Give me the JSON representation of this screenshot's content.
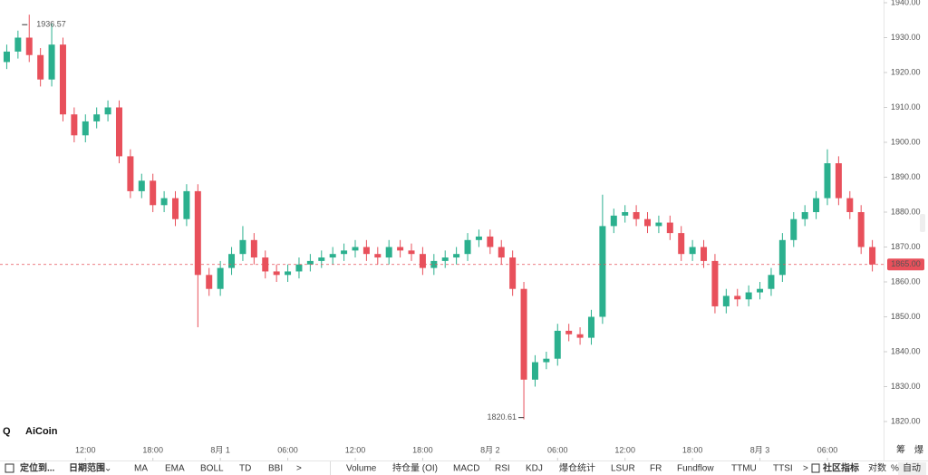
{
  "chart_data": {
    "type": "candlestick",
    "colors": {
      "up": "#2bb08e",
      "down": "#e8505b"
    },
    "x": [
      1,
      2,
      3,
      4,
      5,
      6,
      7,
      8,
      9,
      10,
      11,
      12,
      13,
      14,
      15,
      16,
      17,
      18,
      19,
      20,
      21,
      22,
      23,
      24,
      25,
      26,
      27,
      28,
      29,
      30,
      31,
      32,
      33,
      34,
      35,
      36,
      37,
      38,
      39,
      40,
      41,
      42,
      43,
      44,
      45,
      46,
      47,
      48,
      49,
      50,
      51,
      52,
      53,
      54,
      55,
      56,
      57,
      58,
      59,
      60,
      61,
      62,
      63,
      64,
      65,
      66,
      67,
      68,
      69,
      70,
      71,
      72,
      73,
      74,
      75,
      76,
      77,
      78
    ],
    "open": [
      1923,
      1926,
      1930,
      1925,
      1918,
      1928,
      1908,
      1902,
      1906,
      1908,
      1910,
      1896,
      1886,
      1889,
      1882,
      1884,
      1878,
      1886,
      1862,
      1858,
      1864,
      1868,
      1872,
      1867,
      1863,
      1862,
      1863,
      1865,
      1866,
      1867,
      1868,
      1869,
      1870,
      1868,
      1867,
      1870,
      1869,
      1868,
      1864,
      1866,
      1867,
      1868,
      1872,
      1873,
      1870,
      1867,
      1858,
      1832,
      1837,
      1838,
      1846,
      1845,
      1844,
      1850,
      1876,
      1879,
      1880,
      1878,
      1876,
      1877,
      1874,
      1868,
      1870,
      1866,
      1853,
      1856,
      1855,
      1857,
      1858,
      1862,
      1872,
      1878,
      1880,
      1884,
      1894,
      1884,
      1880,
      1870
    ],
    "high": [
      1928,
      1932,
      1936.57,
      1927,
      1934,
      1930,
      1910,
      1908,
      1910,
      1912,
      1912,
      1898,
      1891,
      1891,
      1886,
      1886,
      1888,
      1888,
      1864,
      1866,
      1870,
      1876,
      1874,
      1869,
      1865,
      1865,
      1867,
      1868,
      1869,
      1870,
      1871,
      1872,
      1872,
      1870,
      1872,
      1872,
      1871,
      1870,
      1868,
      1869,
      1870,
      1874,
      1875,
      1875,
      1872,
      1869,
      1860,
      1839,
      1840,
      1848,
      1848,
      1847,
      1852,
      1885,
      1881,
      1882,
      1882,
      1880,
      1879,
      1879,
      1876,
      1872,
      1872,
      1868,
      1858,
      1858,
      1859,
      1860,
      1864,
      1874,
      1880,
      1882,
      1886,
      1898,
      1896,
      1886,
      1882,
      1872
    ],
    "low": [
      1921,
      1924,
      1923,
      1916,
      1916,
      1906,
      1900,
      1900,
      1904,
      1906,
      1894,
      1884,
      1884,
      1880,
      1880,
      1876,
      1876,
      1847,
      1856,
      1856,
      1862,
      1866,
      1865,
      1861,
      1860,
      1860,
      1861,
      1863,
      1864,
      1865,
      1866,
      1867,
      1866,
      1865,
      1865,
      1867,
      1866,
      1862,
      1862,
      1864,
      1865,
      1866,
      1870,
      1868,
      1865,
      1856,
      1820.61,
      1830,
      1835,
      1836,
      1843,
      1842,
      1842,
      1848,
      1874,
      1877,
      1876,
      1874,
      1874,
      1872,
      1866,
      1866,
      1864,
      1851,
      1851,
      1853,
      1853,
      1855,
      1856,
      1860,
      1870,
      1876,
      1878,
      1882,
      1882,
      1878,
      1868,
      1863
    ],
    "close": [
      1926,
      1930,
      1925,
      1918,
      1928,
      1908,
      1902,
      1906,
      1908,
      1910,
      1896,
      1886,
      1889,
      1882,
      1884,
      1878,
      1886,
      1862,
      1858,
      1864,
      1868,
      1872,
      1867,
      1863,
      1862,
      1863,
      1865,
      1866,
      1867,
      1868,
      1869,
      1870,
      1868,
      1867,
      1870,
      1869,
      1868,
      1864,
      1866,
      1867,
      1868,
      1872,
      1873,
      1870,
      1867,
      1858,
      1832,
      1837,
      1838,
      1846,
      1845,
      1844,
      1850,
      1876,
      1879,
      1880,
      1878,
      1876,
      1877,
      1874,
      1868,
      1870,
      1866,
      1853,
      1856,
      1855,
      1857,
      1858,
      1862,
      1872,
      1878,
      1880,
      1884,
      1894,
      1884,
      1880,
      1870,
      1865
    ],
    "xlim": [
      0.4,
      79
    ],
    "xticks": [
      {
        "value": 8,
        "label": "12:00"
      },
      {
        "value": 14,
        "label": "18:00"
      },
      {
        "value": 20,
        "label": "8月 1"
      },
      {
        "value": 26,
        "label": "06:00"
      },
      {
        "value": 32,
        "label": "12:00"
      },
      {
        "value": 38,
        "label": "18:00"
      },
      {
        "value": 44,
        "label": "8月 2"
      },
      {
        "value": 50,
        "label": "06:00"
      },
      {
        "value": 56,
        "label": "12:00"
      },
      {
        "value": 62,
        "label": "18:00"
      },
      {
        "value": 68,
        "label": "8月 3"
      },
      {
        "value": 74,
        "label": "06:00"
      }
    ],
    "ylim": [
      1820,
      1940
    ],
    "yticks": [
      {
        "value": 1820,
        "label": "1820.00"
      },
      {
        "value": 1830,
        "label": "1830.00"
      },
      {
        "value": 1840,
        "label": "1840.00"
      },
      {
        "value": 1850,
        "label": "1850.00"
      },
      {
        "value": 1860,
        "label": "1860.00"
      },
      {
        "value": 1870,
        "label": "1870.00"
      },
      {
        "value": 1880,
        "label": "1880.00"
      },
      {
        "value": 1890,
        "label": "1890.00"
      },
      {
        "value": 1900,
        "label": "1900.00"
      },
      {
        "value": 1910,
        "label": "1910.00"
      },
      {
        "value": 1920,
        "label": "1920.00"
      },
      {
        "value": 1930,
        "label": "1930.00"
      },
      {
        "value": 1940,
        "label": "1940.00"
      }
    ],
    "grid": false,
    "last_price": {
      "value": 1865,
      "label": "1865.00"
    },
    "logo": "AiCoin"
  },
  "toolbar": {
    "items": [
      "定位到...",
      "日期范围",
      "MA",
      "EMA",
      "BOLL",
      "TD",
      "BBI",
      ">",
      "Volume",
      "持仓量 (OI)",
      "MACD",
      "RSI",
      "KDJ",
      "爆仓统计",
      "LSUR",
      "FR",
      "Fundflow",
      "TTMU",
      "TTSI",
      ">",
      "社区指标",
      "对数",
      "%",
      "自动"
    ],
    "side_buttons": [
      "筹",
      "爆"
    ]
  }
}
